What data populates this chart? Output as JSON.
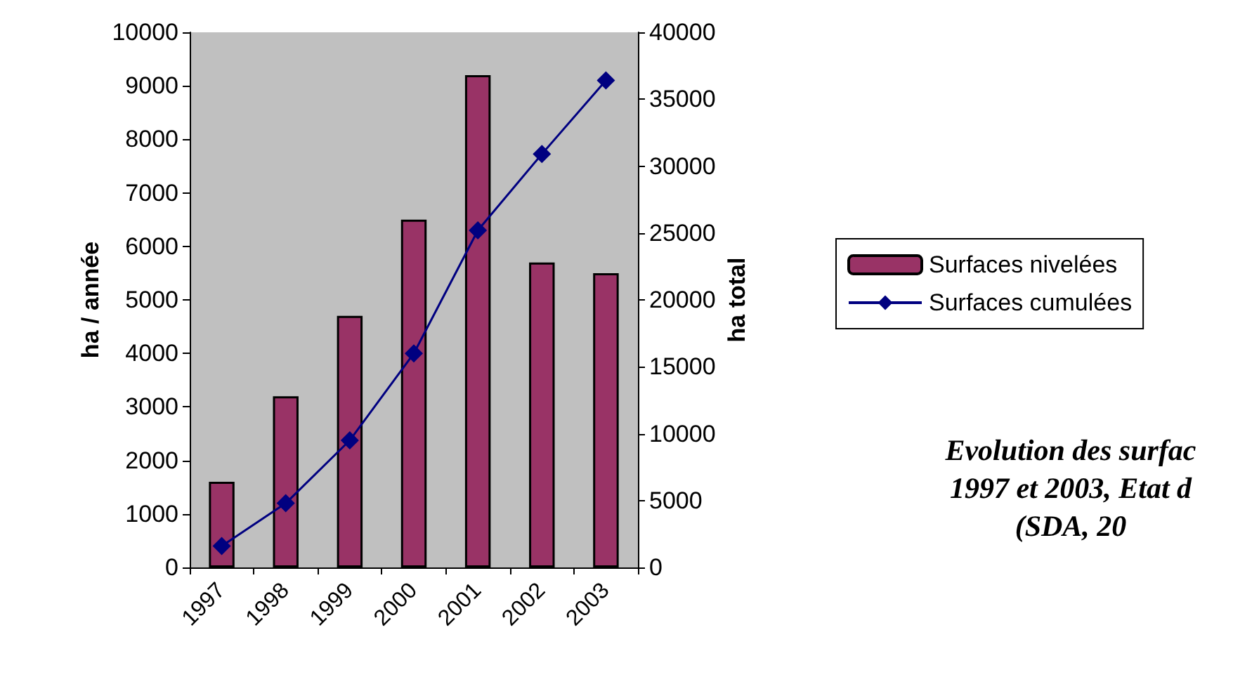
{
  "chart_data": {
    "type": "bar",
    "categories": [
      "1997",
      "1998",
      "1999",
      "2000",
      "2001",
      "2002",
      "2003"
    ],
    "ylabel": "ha / année",
    "y2label": "ha total",
    "series": [
      {
        "name": "Surfaces nivelées",
        "color": "#993366",
        "values": [
          1600,
          3200,
          4700,
          6500,
          9200,
          5700,
          5500
        ]
      },
      {
        "name": "Surfaces cumulées",
        "type": "line",
        "axis": "y2",
        "color": "#000080",
        "marker": "diamond",
        "values": [
          1600,
          4800,
          9500,
          16000,
          25200,
          30900,
          36400
        ]
      }
    ],
    "ylim": [
      0,
      10000
    ],
    "yticks": [
      0,
      1000,
      2000,
      3000,
      4000,
      5000,
      6000,
      7000,
      8000,
      9000,
      10000
    ],
    "y2lim": [
      0,
      40000
    ],
    "y2ticks": [
      0,
      5000,
      10000,
      15000,
      20000,
      25000,
      30000,
      35000,
      40000
    ],
    "grid": false,
    "legend": "right",
    "annotations": [
      "Evolution des surfac",
      "1997 et 2003, Etat d",
      "(SDA, 20"
    ]
  }
}
